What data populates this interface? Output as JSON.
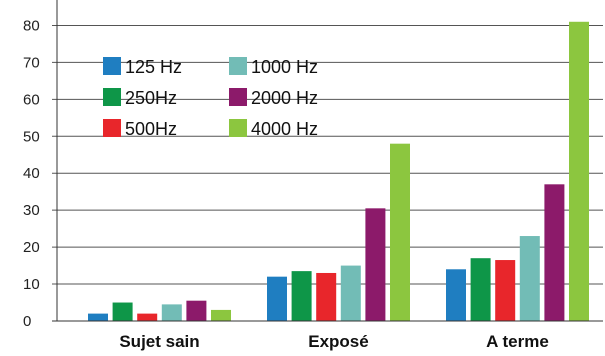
{
  "chart_data": {
    "type": "bar",
    "title": "",
    "xlabel": "",
    "ylabel": "",
    "categories": [
      "Sujet sain",
      "Exposé",
      "A terme"
    ],
    "ylim": [
      0,
      85
    ],
    "yticks": [
      0,
      10,
      20,
      30,
      40,
      50,
      60,
      70,
      80
    ],
    "grid": true,
    "legend_position": "top-left, inside",
    "series": [
      {
        "name": "125 Hz",
        "color": "#1f7ec1",
        "values": [
          2,
          12,
          14
        ]
      },
      {
        "name": "250Hz",
        "color": "#0e9648",
        "values": [
          5,
          13.5,
          17
        ]
      },
      {
        "name": "500Hz",
        "color": "#e8262b",
        "values": [
          2,
          13,
          16.5
        ]
      },
      {
        "name": "1000 Hz",
        "color": "#72bcb6",
        "values": [
          4.5,
          15,
          23
        ]
      },
      {
        "name": "2000 Hz",
        "color": "#8c1a6a",
        "values": [
          5.5,
          30.5,
          37
        ]
      },
      {
        "name": "4000 Hz",
        "color": "#8cc63f",
        "values": [
          3,
          48,
          81
        ]
      }
    ]
  }
}
